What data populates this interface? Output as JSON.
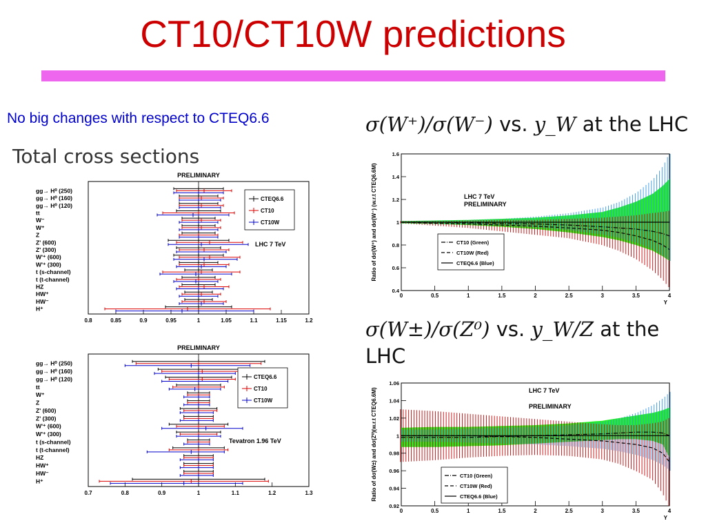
{
  "slide": {
    "title": "CT10/CT10W predictions",
    "title_color": "#cc0000",
    "bar_color": "#ee66ee",
    "subtitle": "No big changes with respect to CTEQ6.6",
    "subtitle_color": "#0000cc",
    "total_label": "Total cross sections"
  },
  "ratio_titles": {
    "wpm": {
      "math1": "σ(W⁺)/σ(W⁻)",
      "vs": " vs. ",
      "math2": "y_W",
      "tail": " at the LHC"
    },
    "wz": {
      "math1": "σ(W±)/σ(Z⁰)",
      "vs": " vs. ",
      "math2": "y_W/Z",
      "tail": " at the LHC"
    }
  },
  "chart_data": [
    {
      "type": "errorbar",
      "title": "PRELIMINARY",
      "annotation": "LHC 7 TeV",
      "legend": [
        "CTEQ6.6",
        "CT10",
        "CT10W"
      ],
      "legend_colors": [
        "#000000",
        "#dd0000",
        "#0000cc"
      ],
      "xlim": [
        0.8,
        1.2
      ],
      "xticks": [
        "0.8",
        "0.85",
        "0.9",
        "0.95",
        "1",
        "1.05",
        "1.1",
        "1.15",
        "1.2"
      ],
      "xtick_values": [
        0.8,
        0.85,
        0.9,
        0.95,
        1,
        1.05,
        1.1,
        1.15,
        1.2
      ],
      "categories": [
        "gg→ H⁰ (250)",
        "gg→ H⁰ (160)",
        "gg→ H⁰ (120)",
        "tt",
        "W⁻",
        "W⁺",
        "Z",
        "Z' (600)",
        "Z' (300)",
        "W'⁺ (600)",
        "W'⁺ (300)",
        "t (s-channel)",
        "t (t-channel)",
        "HZ",
        "HW⁺",
        "HW⁻",
        "H⁺"
      ],
      "series": [
        {
          "name": "CTEQ6.6",
          "center": [
            1.0,
            1.0,
            1.0,
            1.0,
            1.0,
            1.0,
            1.0,
            1.0,
            1.0,
            1.0,
            1.0,
            1.0,
            1.0,
            1.0,
            1.0,
            1.0,
            1.0
          ],
          "low": [
            0.955,
            0.965,
            0.965,
            0.96,
            0.97,
            0.97,
            0.97,
            0.945,
            0.96,
            0.955,
            0.965,
            0.975,
            0.97,
            0.97,
            0.975,
            0.975,
            0.94
          ],
          "high": [
            1.045,
            1.035,
            1.035,
            1.04,
            1.03,
            1.03,
            1.03,
            1.055,
            1.04,
            1.045,
            1.035,
            1.025,
            1.03,
            1.03,
            1.025,
            1.025,
            1.06
          ]
        },
        {
          "name": "CT10",
          "center": [
            1.01,
            1.005,
            1.005,
            1.0,
            1.005,
            1.005,
            1.0,
            1.02,
            1.01,
            1.02,
            1.01,
            1.005,
            1.0,
            1.01,
            1.005,
            1.01,
            0.98
          ],
          "low": [
            0.96,
            0.965,
            0.965,
            0.935,
            0.97,
            0.97,
            0.965,
            0.96,
            0.965,
            0.965,
            0.965,
            0.935,
            0.96,
            0.965,
            0.97,
            0.97,
            0.83
          ],
          "high": [
            1.06,
            1.045,
            1.045,
            1.065,
            1.04,
            1.04,
            1.035,
            1.08,
            1.055,
            1.075,
            1.055,
            1.075,
            1.04,
            1.055,
            1.04,
            1.05,
            1.13
          ]
        },
        {
          "name": "CT10W",
          "center": [
            1.0,
            1.0,
            1.0,
            0.99,
            1.0,
            1.0,
            1.0,
            1.005,
            1.0,
            1.01,
            1.005,
            0.995,
            0.995,
            1.0,
            1.0,
            1.005,
            0.97
          ],
          "low": [
            0.955,
            0.965,
            0.965,
            0.925,
            0.965,
            0.965,
            0.965,
            0.945,
            0.96,
            0.955,
            0.96,
            0.93,
            0.955,
            0.96,
            0.965,
            0.965,
            0.85
          ],
          "high": [
            1.045,
            1.04,
            1.04,
            1.055,
            1.035,
            1.035,
            1.035,
            1.09,
            1.05,
            1.07,
            1.05,
            1.06,
            1.035,
            1.045,
            1.035,
            1.045,
            1.1
          ]
        }
      ]
    },
    {
      "type": "errorbar",
      "title": "PRELIMINARY",
      "annotation": "Tevatron 1.96 TeV",
      "legend": [
        "CTEQ6.6",
        "CT10",
        "CT10W"
      ],
      "legend_colors": [
        "#000000",
        "#dd0000",
        "#0000cc"
      ],
      "xlim": [
        0.7,
        1.3
      ],
      "xticks": [
        "0.7",
        "0.8",
        "0.9",
        "1",
        "1.1",
        "1.2",
        "1.3"
      ],
      "xtick_values": [
        0.7,
        0.8,
        0.9,
        1.0,
        1.1,
        1.2,
        1.3
      ],
      "categories": [
        "gg→ H⁰ (250)",
        "gg→ H⁰ (160)",
        "gg→ H⁰ (120)",
        "tt",
        "W⁺",
        "Z",
        "Z' (600)",
        "Z' (300)",
        "W'⁺ (600)",
        "W'⁺ (300)",
        "t (s-channel)",
        "t (t-channel)",
        "HZ",
        "HW⁺",
        "HW⁻",
        "H⁺"
      ],
      "series": [
        {
          "name": "CTEQ6.6",
          "center": [
            1.0,
            1.0,
            1.0,
            1.0,
            1.0,
            1.0,
            1.0,
            1.0,
            1.0,
            1.0,
            1.0,
            1.0,
            1.0,
            1.0,
            1.0,
            1.0
          ],
          "low": [
            0.82,
            0.89,
            0.91,
            0.94,
            0.97,
            0.97,
            0.95,
            0.96,
            0.92,
            0.94,
            0.97,
            0.93,
            0.96,
            0.96,
            0.96,
            0.82
          ],
          "high": [
            1.18,
            1.11,
            1.09,
            1.06,
            1.03,
            1.03,
            1.05,
            1.04,
            1.08,
            1.06,
            1.03,
            1.07,
            1.04,
            1.04,
            1.04,
            1.18
          ]
        },
        {
          "name": "CT10",
          "center": [
            1.0,
            1.01,
            1.01,
            1.0,
            1.0,
            1.0,
            1.0,
            1.0,
            1.0,
            1.0,
            1.0,
            1.0,
            1.0,
            1.0,
            1.0,
            0.98
          ],
          "low": [
            0.83,
            0.9,
            0.92,
            0.93,
            0.97,
            0.97,
            0.96,
            0.96,
            0.94,
            0.95,
            0.97,
            0.92,
            0.96,
            0.96,
            0.96,
            0.73
          ],
          "high": [
            1.17,
            1.12,
            1.1,
            1.07,
            1.03,
            1.03,
            1.05,
            1.04,
            1.07,
            1.05,
            1.03,
            1.08,
            1.04,
            1.04,
            1.04,
            1.19
          ]
        },
        {
          "name": "CT10W",
          "center": [
            0.98,
            1.0,
            1.0,
            0.99,
            1.0,
            1.0,
            1.0,
            1.0,
            1.02,
            1.0,
            1.0,
            0.98,
            1.0,
            1.0,
            1.0,
            0.96
          ],
          "low": [
            0.8,
            0.88,
            0.9,
            0.92,
            0.96,
            0.96,
            0.95,
            0.95,
            0.9,
            0.94,
            0.96,
            0.86,
            0.95,
            0.95,
            0.95,
            0.76
          ],
          "high": [
            1.14,
            1.1,
            1.08,
            1.06,
            1.03,
            1.03,
            1.04,
            1.04,
            1.12,
            1.06,
            1.03,
            1.07,
            1.04,
            1.04,
            1.04,
            1.12
          ]
        }
      ]
    },
    {
      "type": "band",
      "annotation": "LHC 7 TeV",
      "annotation2": "PRELIMINARY",
      "ylabel": "Ratio of dσ(W⁺) and dσ(W⁻) (w.r.t CTEQ6.6M)",
      "xlabel": "Y",
      "xlim": [
        0,
        4
      ],
      "ylim": [
        0.4,
        1.6
      ],
      "xticks": [
        "0",
        "0.5",
        "1",
        "1.5",
        "2",
        "2.5",
        "3",
        "3.5",
        "4"
      ],
      "xtick_values": [
        0,
        0.5,
        1,
        1.5,
        2,
        2.5,
        3,
        3.5,
        4
      ],
      "yticks": [
        "0.4",
        "0.6",
        "0.8",
        "1",
        "1.2",
        "1.4",
        "1.6"
      ],
      "ytick_values": [
        0.4,
        0.6,
        0.8,
        1.0,
        1.2,
        1.4,
        1.6
      ],
      "legend": [
        "CT10 (Green)",
        "CT10W (Red)",
        "CTEQ6.6 (Blue)"
      ],
      "x": [
        0,
        0.5,
        1,
        1.5,
        2,
        2.5,
        3,
        3.25,
        3.5,
        3.75,
        3.9,
        4.0
      ],
      "green": {
        "center": [
          1,
          1,
          0.995,
          0.99,
          0.985,
          0.975,
          0.96,
          0.95,
          0.94,
          0.92,
          0.9,
          0.88
        ],
        "low": [
          0.99,
          0.985,
          0.975,
          0.96,
          0.94,
          0.91,
          0.87,
          0.84,
          0.8,
          0.75,
          0.7,
          0.66
        ],
        "high": [
          1.01,
          1.015,
          1.02,
          1.03,
          1.04,
          1.06,
          1.09,
          1.13,
          1.18,
          1.25,
          1.32,
          1.38
        ]
      },
      "red": {
        "center": [
          1,
          0.99,
          0.985,
          0.975,
          0.965,
          0.95,
          0.93,
          0.91,
          0.88,
          0.84,
          0.8,
          0.76
        ],
        "low": [
          0.99,
          0.97,
          0.95,
          0.92,
          0.89,
          0.86,
          0.8,
          0.75,
          0.68,
          0.58,
          0.5,
          0.43
        ],
        "high": [
          1.01,
          1.01,
          1.015,
          1.02,
          1.02,
          1.03,
          1.04,
          1.05,
          1.06,
          1.08,
          1.09,
          1.1
        ]
      },
      "blue": {
        "center": [
          1,
          1,
          1,
          1,
          1,
          1,
          1,
          1,
          1,
          1,
          1,
          1
        ],
        "low": [
          0.99,
          0.985,
          0.98,
          0.97,
          0.955,
          0.93,
          0.89,
          0.86,
          0.82,
          0.76,
          0.7,
          0.66
        ],
        "high": [
          1.01,
          1.015,
          1.02,
          1.03,
          1.05,
          1.08,
          1.13,
          1.18,
          1.26,
          1.38,
          1.5,
          1.62
        ]
      }
    },
    {
      "type": "band",
      "annotation": "LHC 7 TeV",
      "annotation2": "PRELIMINARY",
      "ylabel": "Ratio of dσ(W±) and dσ(Z⁰)(w.r.t CTEQ6.6M)",
      "xlabel": "Y",
      "xlim": [
        0,
        4
      ],
      "ylim": [
        0.92,
        1.06
      ],
      "xticks": [
        "0",
        "0.5",
        "1",
        "1.5",
        "2",
        "2.5",
        "3",
        "3.5",
        "4"
      ],
      "xtick_values": [
        0,
        0.5,
        1,
        1.5,
        2,
        2.5,
        3,
        3.5,
        4
      ],
      "yticks": [
        "0.92",
        "0.94",
        "0.96",
        "0.98",
        "1",
        "1.02",
        "1.04",
        "1.06"
      ],
      "ytick_values": [
        0.92,
        0.94,
        0.96,
        0.98,
        1.0,
        1.02,
        1.04,
        1.06
      ],
      "legend": [
        "CT10 (Green)",
        "CT10W (Red)",
        "CTEQ6.6 (Blue)"
      ],
      "x": [
        0,
        0.5,
        1,
        1.5,
        2,
        2.5,
        3,
        3.25,
        3.5,
        3.75,
        3.9,
        4.0
      ],
      "green": {
        "center": [
          0.998,
          0.998,
          0.998,
          0.999,
          1.0,
          1.001,
          1.002,
          1.003,
          1.004,
          1.004,
          1.003,
          1.0
        ],
        "low": [
          0.987,
          0.987,
          0.988,
          0.989,
          0.991,
          0.993,
          0.995,
          0.996,
          0.996,
          0.994,
          0.99,
          0.975
        ],
        "high": [
          1.009,
          1.01,
          1.01,
          1.011,
          1.012,
          1.014,
          1.017,
          1.02,
          1.023,
          1.026,
          1.029,
          1.032
        ]
      },
      "red": {
        "center": [
          1.0,
          1.0,
          1.0,
          0.999,
          0.998,
          0.996,
          0.994,
          0.992,
          0.99,
          0.986,
          0.98,
          0.97
        ],
        "low": [
          0.97,
          0.972,
          0.975,
          0.977,
          0.978,
          0.977,
          0.973,
          0.968,
          0.96,
          0.95,
          0.935,
          0.92
        ],
        "high": [
          1.03,
          1.028,
          1.025,
          1.022,
          1.019,
          1.016,
          1.013,
          1.012,
          1.012,
          1.014,
          1.016,
          1.02
        ]
      },
      "blue": {
        "center": [
          1,
          1,
          1,
          1,
          1,
          1,
          1,
          1,
          1,
          1,
          1,
          1
        ],
        "low": [
          0.993,
          0.993,
          0.992,
          0.991,
          0.99,
          0.988,
          0.985,
          0.982,
          0.978,
          0.972,
          0.966,
          0.96
        ],
        "high": [
          1.007,
          1.007,
          1.008,
          1.009,
          1.01,
          1.012,
          1.016,
          1.02,
          1.026,
          1.035,
          1.043,
          1.05
        ]
      }
    }
  ]
}
